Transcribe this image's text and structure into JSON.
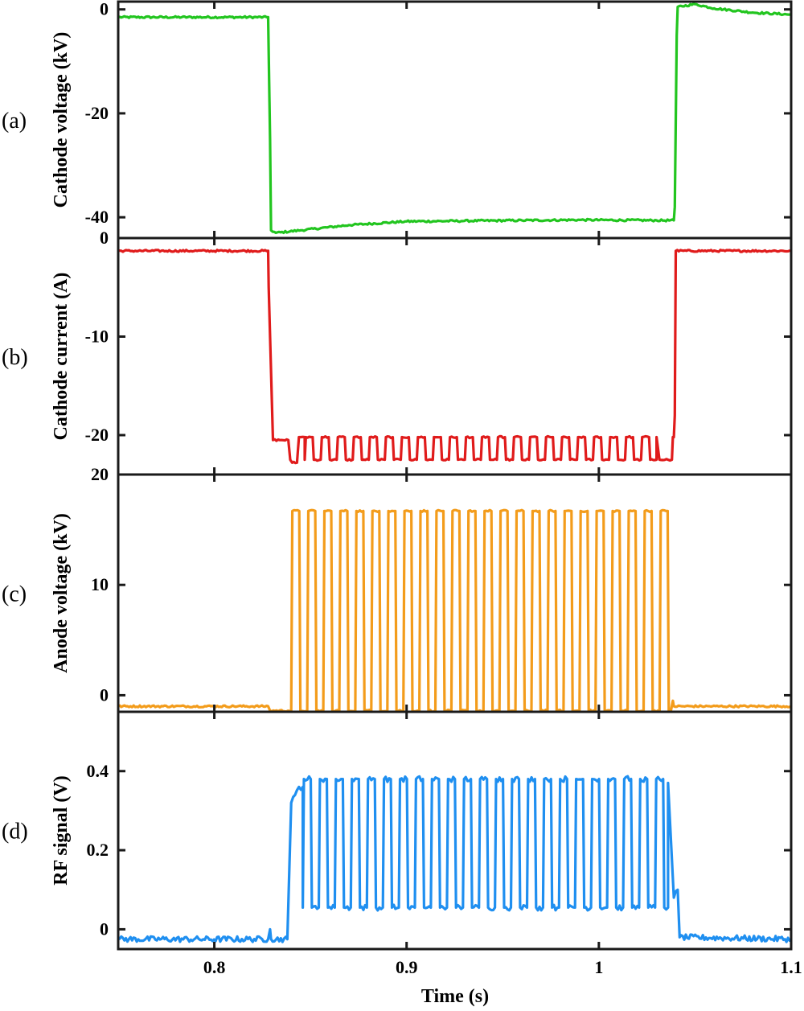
{
  "chart_data": [
    {
      "type": "line",
      "panel_label": "(a)",
      "ylabel": "Cathode voltage (kV)",
      "xlim": [
        0.75,
        1.1
      ],
      "ylim": [
        -44,
        1.5
      ],
      "yticks": [
        0,
        -20,
        -40
      ],
      "ytick_labels": [
        "0",
        "-20",
        "-40"
      ],
      "color": "#22c51f",
      "series": [
        {
          "x": [
            0.75,
            0.828,
            0.829,
            0.8295,
            0.832,
            0.845,
            0.87,
            0.9,
            0.93,
            0.96,
            0.99,
            1.03,
            1.039,
            1.0395,
            1.0405,
            1.041,
            1.05,
            1.06,
            1.08,
            1.1
          ],
          "y": [
            -1.5,
            -1.5,
            -25,
            -42.5,
            -43.0,
            -42.5,
            -41.5,
            -40.8,
            -40.7,
            -40.6,
            -40.5,
            -40.6,
            -40.6,
            -38,
            -5,
            0.5,
            1.0,
            0.2,
            -0.6,
            -1.0
          ]
        }
      ]
    },
    {
      "type": "line",
      "panel_label": "(b)",
      "ylabel": "Cathode current (A)",
      "xlim": [
        0.75,
        1.1
      ],
      "ylim": [
        -24,
        0
      ],
      "yticks": [
        0,
        -10,
        -20
      ],
      "ytick_labels": [
        "0",
        "-10",
        "-20"
      ],
      "color": "#e01b1b",
      "series": [
        {
          "x": [
            0.75,
            0.828,
            0.8283,
            0.8305,
            0.835,
            0.8385,
            0.8395,
            0.8405,
            0.843,
            0.844,
            0.845,
            0.847,
            1.03,
            1.0315,
            1.036,
            1.038,
            1.0385,
            1.039,
            1.0395,
            1.04,
            1.1
          ],
          "y": [
            -1.3,
            -1.3,
            -5,
            -20.5,
            -20.5,
            -20.5,
            -22.5,
            -22.8,
            -22.8,
            -20.2,
            -20.2,
            -20.2,
            -20.2,
            -22.5,
            -22.5,
            -22.5,
            -20.2,
            -20.2,
            -18,
            -1.3,
            -1.3
          ],
          "oscillation": {
            "start": 0.847,
            "end": 1.03,
            "period": 0.00833,
            "high": -20.2,
            "low": -22.5
          }
        }
      ]
    },
    {
      "type": "line",
      "panel_label": "(c)",
      "ylabel": "Anode voltage (kV)",
      "xlim": [
        0.75,
        1.1
      ],
      "ylim": [
        -1.5,
        20
      ],
      "yticks": [
        0,
        10,
        20
      ],
      "ytick_labels": [
        "0",
        "10",
        "20"
      ],
      "color": "#f39c1b",
      "series": [
        {
          "x": [
            0.75,
            0.828,
            0.829,
            0.84,
            1.0375,
            1.0385,
            1.039,
            1.1
          ],
          "y": [
            -1.0,
            -1.0,
            -1.4,
            -1.4,
            -1.4,
            -0.5,
            -1.0,
            -1.0
          ],
          "oscillation": {
            "start": 0.84,
            "end": 1.0375,
            "period": 0.00833,
            "high": 16.7,
            "low": -1.4
          }
        }
      ]
    },
    {
      "type": "line",
      "panel_label": "(d)",
      "ylabel": "RF signal (V)",
      "xlabel": "Time (s)",
      "xlim": [
        0.75,
        1.1
      ],
      "ylim": [
        -0.05,
        0.55
      ],
      "yticks": [
        0,
        0.2,
        0.4
      ],
      "ytick_labels": [
        "0",
        "0.2",
        "0.4"
      ],
      "xticks": [
        0.8,
        0.9,
        1.0,
        1.1
      ],
      "xtick_labels": [
        "0.8",
        "0.9",
        "1",
        "1.1"
      ],
      "color": "#1f8ff0",
      "series": [
        {
          "x": [
            0.75,
            0.828,
            0.829,
            0.8295,
            0.838,
            0.84,
            0.842,
            0.844,
            0.846,
            1.036,
            1.039,
            1.041,
            1.042,
            1.1
          ],
          "y": [
            -0.025,
            -0.025,
            0.0,
            -0.025,
            -0.025,
            0.32,
            0.34,
            0.36,
            0.36,
            0.37,
            0.08,
            0.1,
            -0.02,
            -0.025
          ],
          "oscillation": {
            "start": 0.846,
            "end": 1.036,
            "period": 0.00833,
            "high": 0.38,
            "low": 0.055
          }
        }
      ]
    }
  ]
}
